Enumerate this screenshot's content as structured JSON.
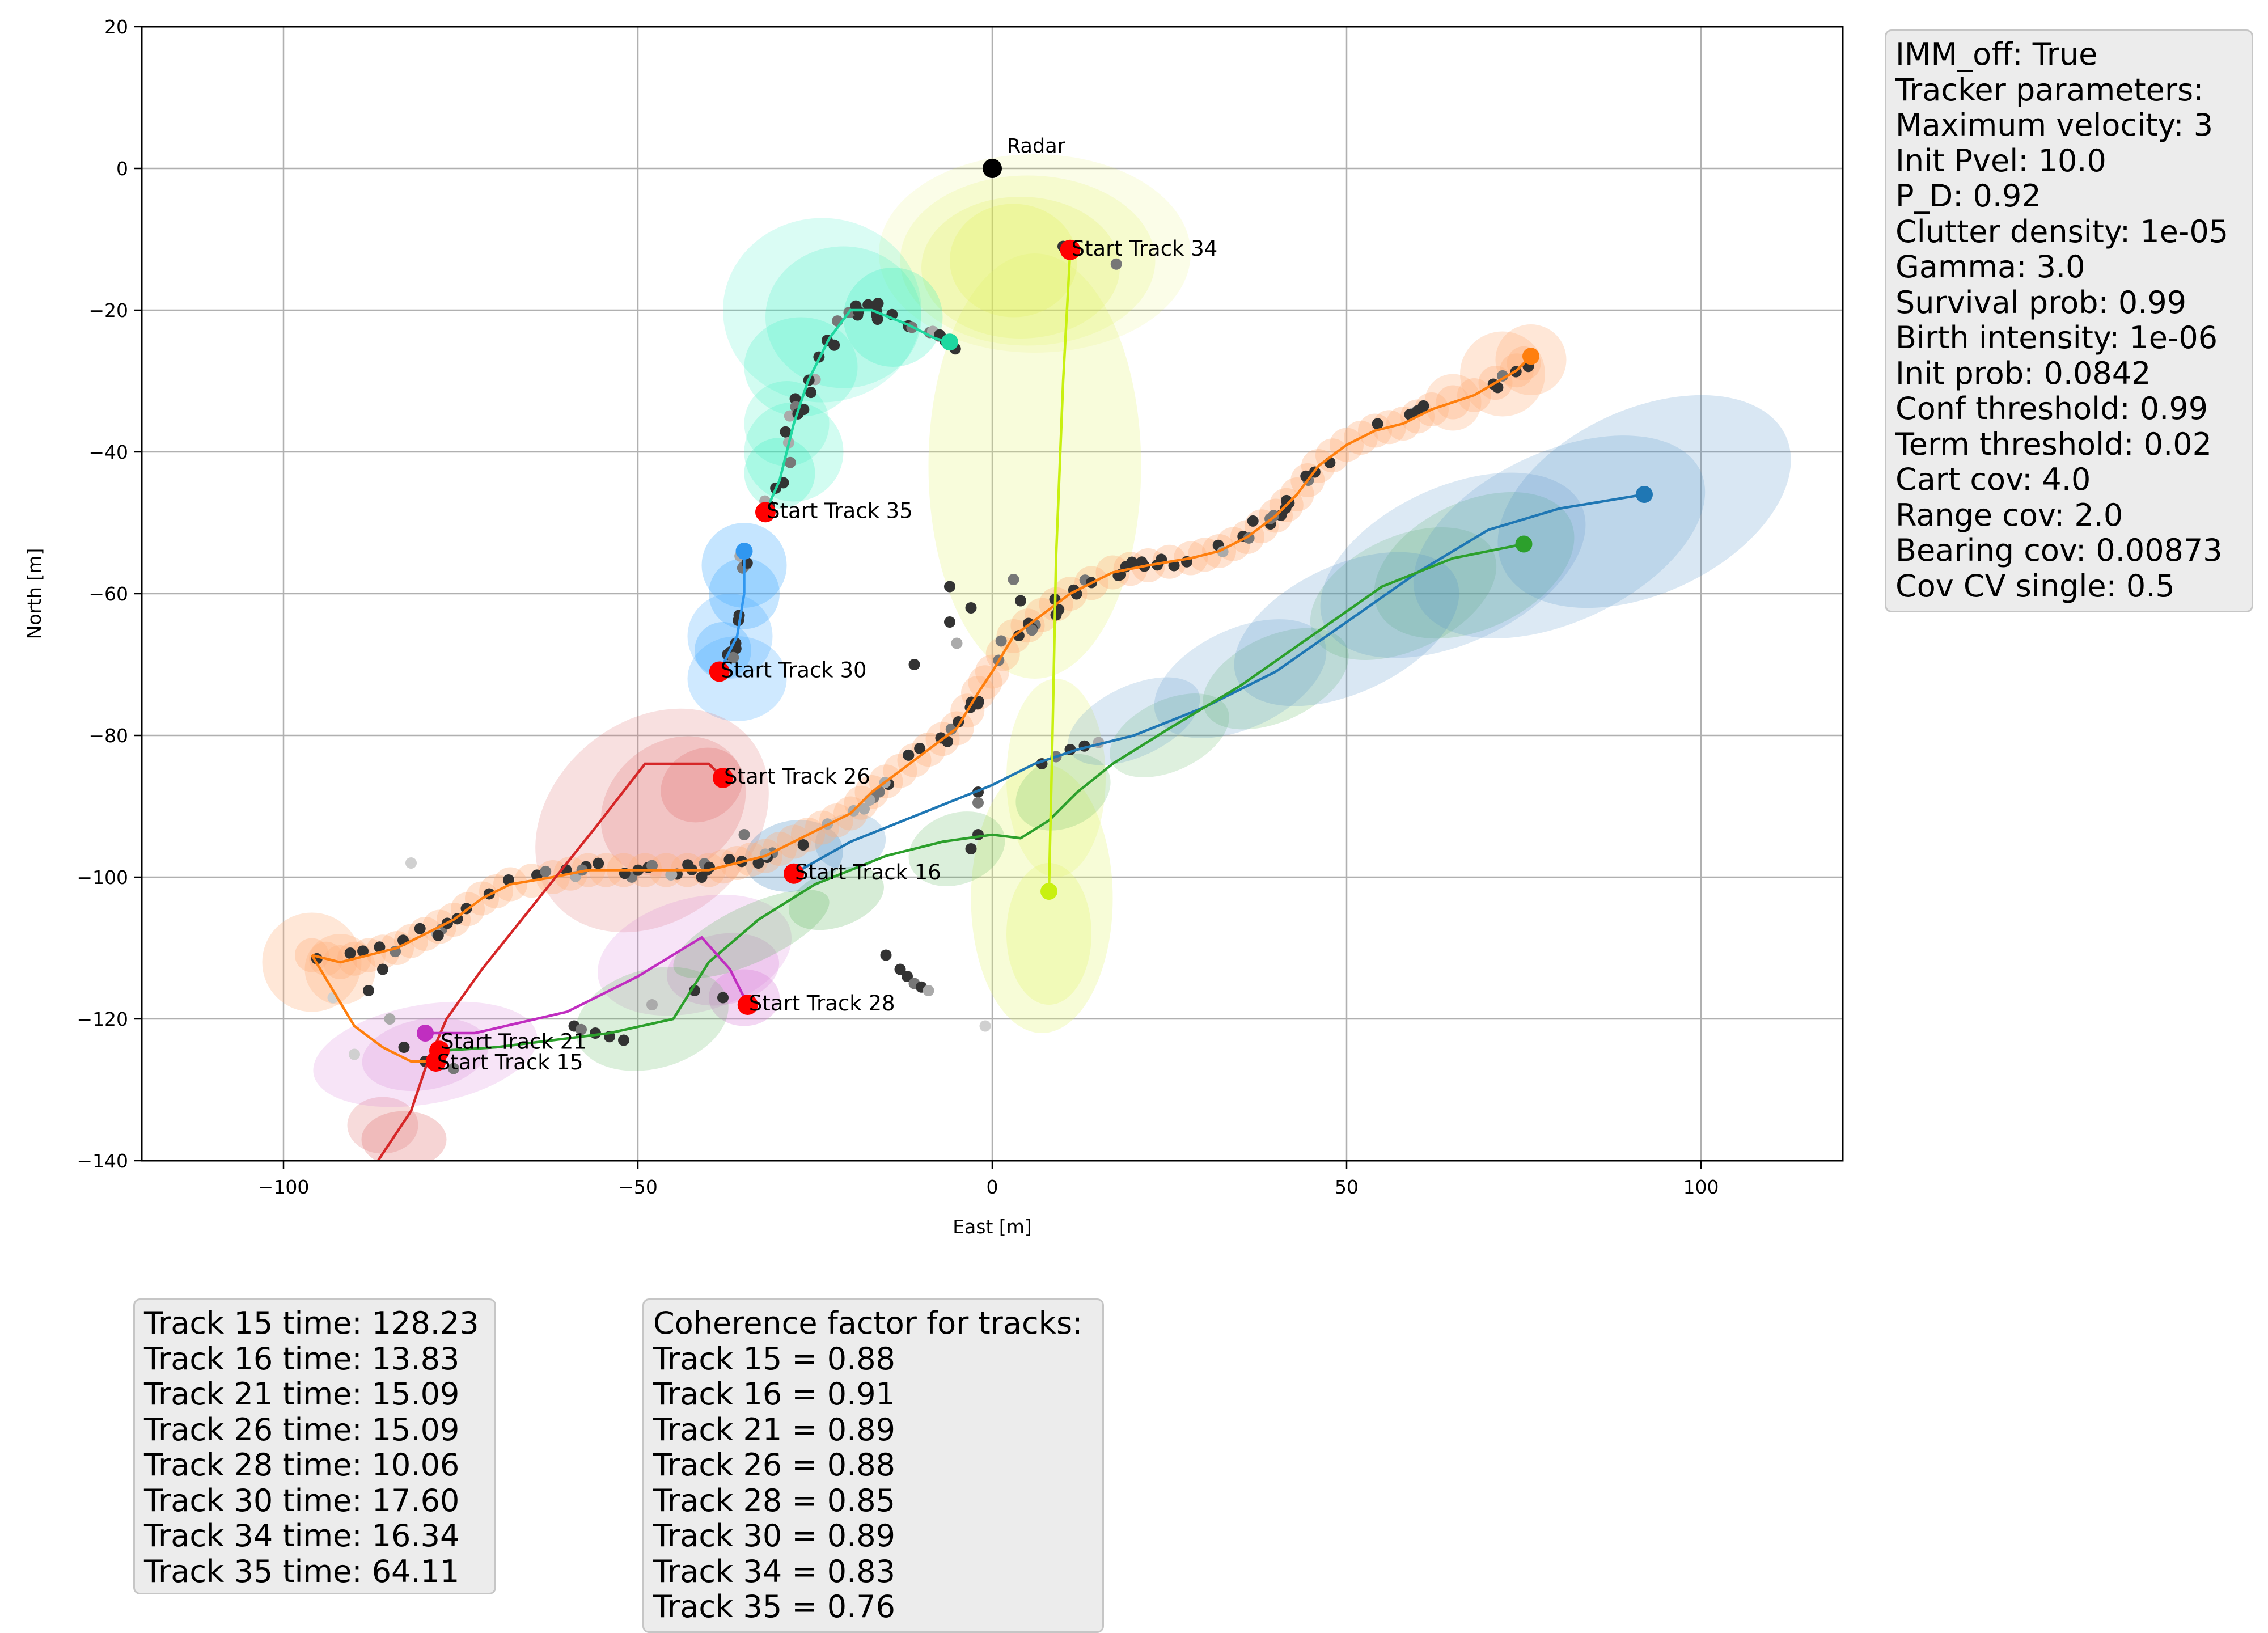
{
  "chart_data": {
    "type": "scatter",
    "xlabel": "East [m]",
    "ylabel": "North [m]",
    "xlim": [
      -120,
      120
    ],
    "ylim": [
      -140,
      20
    ],
    "x_ticks": [
      -100,
      -50,
      0,
      50,
      100
    ],
    "y_ticks": [
      20,
      0,
      -20,
      -40,
      -60,
      -80,
      -100,
      -120,
      -140
    ],
    "x_tick_labels": [
      "−100",
      "−50",
      "0",
      "50",
      "100"
    ],
    "y_tick_labels": [
      "20",
      "0",
      "−20",
      "−40",
      "−60",
      "−80",
      "−100",
      "−120",
      "−140"
    ],
    "grid": true,
    "radar": {
      "label": "Radar",
      "x": 0,
      "y": 0
    },
    "tracks": [
      {
        "id": 15,
        "color": "#ff7f0e",
        "start_label": "Start Track 15",
        "start": [
          -78.5,
          -126
        ],
        "path": [
          [
            -96,
            -111
          ],
          [
            -92,
            -112
          ],
          [
            -88,
            -111
          ],
          [
            -84,
            -110
          ],
          [
            -80,
            -108
          ],
          [
            -76,
            -106
          ],
          [
            -72,
            -103
          ],
          [
            -68,
            -101
          ],
          [
            -62,
            -100
          ],
          [
            -57,
            -99
          ],
          [
            -52,
            -99
          ],
          [
            -46,
            -99
          ],
          [
            -40,
            -99
          ],
          [
            -36,
            -98
          ],
          [
            -32,
            -97
          ],
          [
            -28,
            -95
          ],
          [
            -24,
            -93
          ],
          [
            -20,
            -91
          ],
          [
            -17,
            -88
          ],
          [
            -13,
            -85
          ],
          [
            -9,
            -82
          ],
          [
            -5,
            -79
          ],
          [
            -2,
            -74
          ],
          [
            0,
            -71
          ],
          [
            3,
            -66
          ],
          [
            7,
            -63
          ],
          [
            11,
            -60
          ],
          [
            17,
            -57
          ],
          [
            22,
            -56
          ],
          [
            28,
            -55
          ],
          [
            32,
            -54
          ],
          [
            36,
            -52
          ],
          [
            40,
            -49
          ],
          [
            43,
            -46
          ],
          [
            46,
            -42
          ],
          [
            50,
            -39
          ],
          [
            54,
            -37
          ],
          [
            58,
            -36
          ],
          [
            62,
            -34
          ],
          [
            68,
            -32
          ],
          [
            74,
            -28.5
          ],
          [
            76,
            -26.5
          ]
        ],
        "tail": [
          [
            -96,
            -111
          ],
          [
            -93,
            -116
          ],
          [
            -90,
            -121
          ],
          [
            -86,
            -124
          ],
          [
            -82,
            -126
          ],
          [
            -78.5,
            -126
          ]
        ],
        "end": [
          76,
          -26.5
        ]
      },
      {
        "id": 16,
        "color": "#1f77b4",
        "start_label": "Start Track 16",
        "start": [
          -28,
          -99.5
        ],
        "path": [
          [
            -28,
            -99.5
          ],
          [
            -20,
            -95
          ],
          [
            -10,
            -91
          ],
          [
            0,
            -87
          ],
          [
            6,
            -84
          ],
          [
            12,
            -82
          ],
          [
            20,
            -80
          ],
          [
            30,
            -76
          ],
          [
            40,
            -71
          ],
          [
            50,
            -64
          ],
          [
            60,
            -57
          ],
          [
            70,
            -51
          ],
          [
            80,
            -48
          ],
          [
            92,
            -46
          ]
        ],
        "end": [
          92,
          -46
        ]
      },
      {
        "id": 21,
        "color": "#2ca02c",
        "start_label": "Start Track 21",
        "start": [
          -78,
          -124.5
        ],
        "path": [
          [
            -78,
            -124.5
          ],
          [
            -70,
            -124
          ],
          [
            -62,
            -123
          ],
          [
            -54,
            -122
          ],
          [
            -45,
            -120
          ],
          [
            -40,
            -112
          ],
          [
            -33,
            -106
          ],
          [
            -25,
            -101
          ],
          [
            -15,
            -97
          ],
          [
            -7,
            -95
          ],
          [
            0,
            -94
          ],
          [
            4,
            -94.5
          ],
          [
            8,
            -92
          ],
          [
            12,
            -88
          ],
          [
            17,
            -84
          ],
          [
            25,
            -79
          ],
          [
            35,
            -73
          ],
          [
            45,
            -66
          ],
          [
            55,
            -59
          ],
          [
            65,
            -55
          ],
          [
            75,
            -53
          ]
        ],
        "end": [
          75,
          -53
        ]
      },
      {
        "id": 26,
        "color": "#d62728",
        "start_label": "Start Track 26",
        "start": [
          -38,
          -86
        ],
        "path": [
          [
            -38,
            -86
          ],
          [
            -40,
            -84
          ],
          [
            -49,
            -84
          ],
          [
            -56,
            -93
          ],
          [
            -64,
            -103
          ],
          [
            -72,
            -113
          ],
          [
            -77,
            -120
          ],
          [
            -80,
            -127
          ],
          [
            -82,
            -133
          ],
          [
            -88,
            -142
          ]
        ],
        "end": null
      },
      {
        "id": 28,
        "color": "#c02ec0",
        "start_label": "Start Track 28",
        "start": [
          -34.5,
          -118
        ],
        "path": [
          [
            -34.5,
            -118
          ],
          [
            -37,
            -113
          ],
          [
            -41,
            -108.5
          ],
          [
            -50,
            -114
          ],
          [
            -60,
            -119
          ],
          [
            -73,
            -122
          ],
          [
            -80,
            -122
          ]
        ],
        "end": [
          -80,
          -122
        ]
      },
      {
        "id": 30,
        "color": "#3097f0",
        "start_label": "Start Track 30",
        "start": [
          -38.5,
          -71
        ],
        "path": [
          [
            -38.5,
            -71
          ],
          [
            -36,
            -66
          ],
          [
            -35,
            -60
          ],
          [
            -35,
            -54
          ]
        ],
        "end": [
          -35,
          -54
        ]
      },
      {
        "id": 34,
        "color": "#c8f010",
        "start_label": "Start Track 34",
        "start": [
          11,
          -11.5
        ],
        "path": [
          [
            11,
            -11.5
          ],
          [
            10,
            -30
          ],
          [
            9,
            -55
          ],
          [
            8.5,
            -80
          ],
          [
            8,
            -102
          ]
        ],
        "end": [
          8,
          -102
        ]
      },
      {
        "id": 35,
        "color": "#1fd8a0",
        "start_label": "Start Track 35",
        "start": [
          -32,
          -48.5
        ],
        "path": [
          [
            -32,
            -48.5
          ],
          [
            -30,
            -44
          ],
          [
            -28,
            -36
          ],
          [
            -26,
            -30
          ],
          [
            -23,
            -24
          ],
          [
            -20,
            -20
          ],
          [
            -17,
            -20
          ],
          [
            -12,
            -22
          ],
          [
            -8,
            -24
          ],
          [
            -6,
            -24.5
          ]
        ],
        "end": [
          -6,
          -24.5
        ]
      }
    ]
  },
  "params_box": {
    "lines": [
      "IMM_off: True",
      "Tracker parameters:",
      "Maximum velocity: 3",
      "Init Pvel: 10.0",
      "P_D: 0.92",
      "Clutter density: 1e-05",
      "Gamma: 3.0",
      "Survival prob: 0.99",
      "Birth intensity: 1e-06",
      "Init prob: 0.0842",
      "Conf threshold: 0.99",
      "Term threshold: 0.02",
      "Cart cov: 4.0",
      "Range cov: 2.0",
      "Bearing cov: 0.00873",
      "Cov CV single: 0.5"
    ]
  },
  "times_box": {
    "lines": [
      "Track 15 time: 128.23",
      "Track 16 time: 13.83",
      "Track 21 time: 15.09",
      "Track 26 time: 15.09",
      "Track 28 time: 10.06",
      "Track 30 time: 17.60",
      "Track 34 time: 16.34",
      "Track 35 time: 64.11"
    ]
  },
  "coherence_box": {
    "lines": [
      "Coherence factor for tracks:",
      "Track 15 = 0.88",
      "Track 16 = 0.91",
      "Track 21 = 0.89",
      "Track 26 = 0.88",
      "Track 28 = 0.85",
      "Track 30 = 0.89",
      "Track 34 = 0.83",
      "Track 35 = 0.76"
    ]
  }
}
